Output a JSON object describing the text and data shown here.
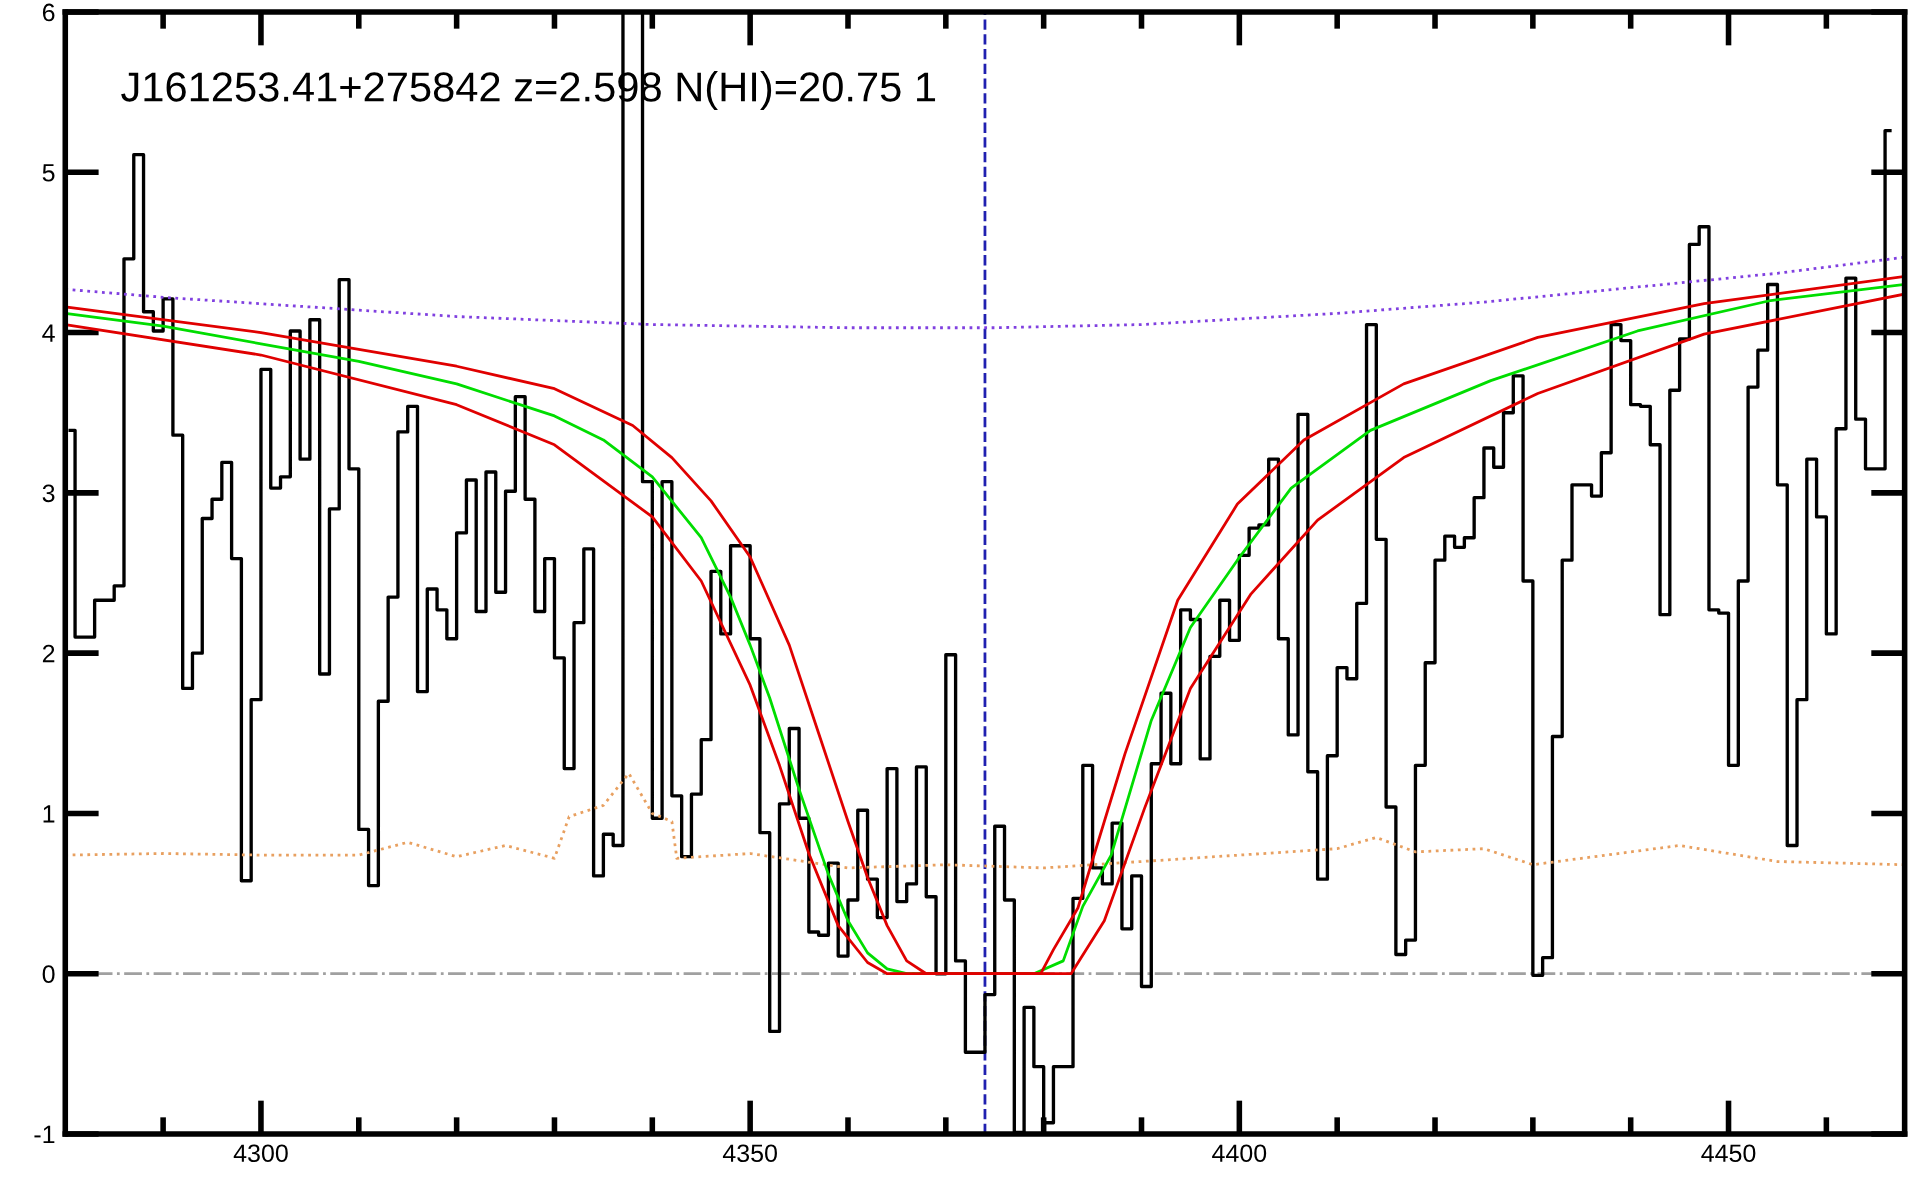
{
  "chart_data": {
    "type": "line",
    "title": "J161253.41+275842 z=2.598 N(HI)=20.75 1",
    "xlim": [
      4280,
      4468
    ],
    "ylim": [
      -1,
      6
    ],
    "xticks": [
      {
        "value": 4290,
        "label": null
      },
      4300,
      {
        "value": 4310,
        "label": null
      },
      {
        "value": 4320,
        "label": null
      },
      {
        "value": 4330,
        "label": null
      },
      {
        "value": 4340,
        "label": null
      },
      4350,
      {
        "value": 4360,
        "label": null
      },
      {
        "value": 4370,
        "label": null
      },
      {
        "value": 4380,
        "label": null
      },
      {
        "value": 4390,
        "label": null
      },
      4400,
      {
        "value": 4410,
        "label": null
      },
      {
        "value": 4420,
        "label": null
      },
      {
        "value": 4430,
        "label": null
      },
      {
        "value": 4440,
        "label": null
      },
      4450,
      {
        "value": 4460,
        "label": null
      }
    ],
    "yticks": [
      -1,
      0,
      1,
      2,
      3,
      4,
      5,
      6
    ],
    "grid": false,
    "legend": false,
    "ref_lines": [
      {
        "axis": "y",
        "value": 0,
        "color": "#a0a0a0",
        "line_style": "dashdot"
      },
      {
        "axis": "x",
        "value": 4374,
        "color": "#2020b0",
        "line_style": "dashed"
      }
    ],
    "series": [
      {
        "type": "step",
        "color": "#000000",
        "line_style": "solid",
        "x": [
          4280.5,
          4281.5,
          4282.5,
          4283.5,
          4284.5,
          4285.5,
          4286.5,
          4287.5,
          4288.5,
          4289.5,
          4290.5,
          4291.5,
          4292.5,
          4293.5,
          4294.5,
          4295.5,
          4296.5,
          4297.5,
          4298.5,
          4299.5,
          4300.5,
          4301.5,
          4302.5,
          4303.5,
          4304.5,
          4305.5,
          4306.5,
          4307.5,
          4308.5,
          4309.5,
          4310.5,
          4311.5,
          4312.5,
          4313.5,
          4314.5,
          4315.5,
          4316.5,
          4317.5,
          4318.5,
          4319.5,
          4320.5,
          4321.5,
          4322.5,
          4323.5,
          4324.5,
          4325.5,
          4326.5,
          4327.5,
          4328.5,
          4329.5,
          4330.5,
          4331.5,
          4332.5,
          4333.5,
          4334.5,
          4335.5,
          4336.5,
          4337.5,
          4338.5,
          4339.5,
          4340.5,
          4341.5,
          4342.5,
          4343.5,
          4344.5,
          4345.5,
          4346.5,
          4347.5,
          4348.5,
          4349.5,
          4350.5,
          4351.5,
          4352.5,
          4353.5,
          4354.5,
          4355.5,
          4356.5,
          4357.5,
          4358.5,
          4359.5,
          4360.5,
          4361.5,
          4362.5,
          4363.5,
          4364.5,
          4365.5,
          4366.5,
          4367.5,
          4368.5,
          4369.5,
          4370.5,
          4371.5,
          4372.5,
          4373.5,
          4374.5,
          4375.5,
          4376.5,
          4377.5,
          4378.5,
          4379.5,
          4380.5,
          4381.5,
          4382.5,
          4383.5,
          4384.5,
          4385.5,
          4386.5,
          4387.5,
          4388.5,
          4389.5,
          4390.5,
          4391.5,
          4392.5,
          4393.5,
          4394.5,
          4395.5,
          4396.5,
          4397.5,
          4398.5,
          4399.5,
          4400.5,
          4401.5,
          4402.5,
          4403.5,
          4404.5,
          4405.5,
          4406.5,
          4407.5,
          4408.5,
          4409.5,
          4410.5,
          4411.5,
          4412.5,
          4413.5,
          4414.5,
          4415.5,
          4416.5,
          4417.5,
          4418.5,
          4419.5,
          4420.5,
          4421.5,
          4422.5,
          4423.5,
          4424.5,
          4425.5,
          4426.5,
          4427.5,
          4428.5,
          4429.5,
          4430.5,
          4431.5,
          4432.5,
          4433.5,
          4434.5,
          4435.5,
          4436.5,
          4437.5,
          4438.5,
          4439.5,
          4440.5,
          4441.5,
          4442.5,
          4443.5,
          4444.5,
          4445.5,
          4446.5,
          4447.5,
          4448.5,
          4449.5,
          4450.5,
          4451.5,
          4452.5,
          4453.5,
          4454.5,
          4455.5,
          4456.5,
          4457.5,
          4458.5,
          4459.5,
          4460.5,
          4461.5,
          4462.5,
          4463.5,
          4464.5,
          4465.5,
          4466.5
        ],
        "values": [
          3.39,
          2.1,
          2.1,
          2.33,
          2.33,
          2.42,
          4.46,
          5.11,
          4.13,
          4.01,
          4.21,
          3.36,
          1.78,
          2.0,
          2.84,
          2.96,
          3.19,
          2.59,
          0.58,
          1.71,
          3.77,
          3.03,
          3.1,
          4.01,
          3.21,
          4.08,
          1.87,
          2.9,
          4.33,
          3.15,
          0.9,
          0.55,
          1.7,
          2.35,
          3.38,
          3.54,
          1.76,
          2.4,
          2.27,
          2.09,
          2.75,
          3.08,
          2.26,
          3.13,
          2.38,
          3.01,
          3.6,
          2.96,
          2.26,
          2.59,
          1.97,
          1.28,
          2.19,
          2.65,
          0.61,
          0.87,
          0.8,
          6,
          6,
          3.07,
          0.97,
          3.07,
          1.11,
          0.73,
          1.12,
          1.46,
          2.51,
          2.12,
          2.67,
          2.67,
          2.09,
          0.88,
          -0.36,
          1.06,
          1.53,
          0.97,
          0.26,
          0.24,
          0.69,
          0.11,
          0.46,
          1.02,
          0.59,
          0.35,
          1.28,
          0.45,
          0.56,
          1.29,
          0.48,
          0.0,
          1.99,
          0.08,
          -0.49,
          -0.49,
          -0.13,
          0.92,
          0.46,
          -0.99,
          -0.21,
          -0.58,
          -0.93,
          -0.58,
          -0.58,
          0.47,
          1.3,
          0.66,
          0.56,
          0.94,
          0.28,
          0.61,
          -0.08,
          1.31,
          1.75,
          1.31,
          2.27,
          2.21,
          1.34,
          1.98,
          2.33,
          2.08,
          2.61,
          2.78,
          2.8,
          3.21,
          2.09,
          1.49,
          3.49,
          1.26,
          0.59,
          1.36,
          1.91,
          1.84,
          2.31,
          4.05,
          2.71,
          1.04,
          0.12,
          0.21,
          1.3,
          1.94,
          2.58,
          2.73,
          2.66,
          2.72,
          2.97,
          3.28,
          3.16,
          3.5,
          3.73,
          2.45,
          -0.01,
          0.1,
          1.48,
          2.58,
          3.05,
          3.05,
          2.98,
          3.25,
          4.05,
          3.95,
          3.55,
          3.54,
          3.3,
          2.24,
          3.64,
          3.96,
          4.55,
          4.66,
          2.27,
          2.25,
          1.3,
          2.45,
          3.66,
          3.89,
          4.3,
          3.05,
          0.8,
          1.71,
          3.21,
          2.85,
          2.12,
          3.4,
          4.34,
          3.46,
          3.15,
          3.15,
          5.26
        ]
      },
      {
        "color": "#8040e0",
        "line_style": "dotted",
        "x": [
          4280,
          4290,
          4300,
          4320,
          4340,
          4360,
          4375,
          4390,
          4410,
          4425,
          4440,
          4455,
          4468
        ],
        "values": [
          4.27,
          4.22,
          4.18,
          4.1,
          4.05,
          4.03,
          4.03,
          4.05,
          4.12,
          4.19,
          4.28,
          4.37,
          4.47
        ]
      },
      {
        "color": "#e8a060",
        "line_style": "dotted",
        "x": [
          4280,
          4290,
          4300,
          4310,
          4315,
          4320,
          4325,
          4330,
          4331.5,
          4335,
          4337.6,
          4340,
          4342,
          4342.5,
          4350,
          4360,
          4370,
          4380,
          4390,
          4400,
          4410,
          4414,
          4418,
          4425,
          4430,
          4440,
          4445,
          4455,
          4468
        ],
        "values": [
          0.74,
          0.75,
          0.74,
          0.74,
          0.82,
          0.73,
          0.8,
          0.72,
          0.98,
          1.05,
          1.25,
          1.0,
          0.95,
          0.72,
          0.75,
          0.66,
          0.68,
          0.66,
          0.7,
          0.74,
          0.78,
          0.85,
          0.76,
          0.78,
          0.68,
          0.76,
          0.8,
          0.7,
          0.68
        ]
      },
      {
        "color": "#00dd00",
        "line_style": "solid",
        "x": [
          4280,
          4290,
          4300,
          4310,
          4320,
          4330,
          4335,
          4340,
          4345,
          4348,
          4350,
          4352,
          4355,
          4358,
          4360,
          4362,
          4364,
          4366,
          4379,
          4382,
          4384,
          4386.9,
          4391,
          4395,
          4399.8,
          4405.3,
          4413.4,
          4425.7,
          4440.7,
          4454.3,
          4468
        ],
        "values": [
          4.12,
          4.04,
          3.93,
          3.82,
          3.68,
          3.48,
          3.33,
          3.1,
          2.72,
          2.35,
          2.05,
          1.72,
          1.15,
          0.62,
          0.33,
          0.13,
          0.03,
          0.0,
          0.0,
          0.08,
          0.42,
          0.74,
          1.58,
          2.16,
          2.58,
          3.03,
          3.39,
          3.7,
          4.01,
          4.2,
          4.3
        ]
      },
      {
        "color": "#e00000",
        "line_style": "solid",
        "x": [
          4280,
          4300,
          4320,
          4330,
          4338,
          4342,
          4346,
          4350,
          4354,
          4357,
          4360,
          4362,
          4364,
          4366,
          4368,
          4379.7,
          4381,
          4383.5,
          4388.3,
          4393.7,
          4399.8,
          4406.6,
          4416.8,
          4430.5,
          4447.5,
          4468
        ],
        "values": [
          4.16,
          4.0,
          3.79,
          3.65,
          3.42,
          3.22,
          2.95,
          2.6,
          2.05,
          1.5,
          0.95,
          0.6,
          0.3,
          0.08,
          0.0,
          0.0,
          0.15,
          0.41,
          1.37,
          2.33,
          2.93,
          3.33,
          3.68,
          3.97,
          4.18,
          4.35
        ]
      },
      {
        "color": "#e00000",
        "line_style": "solid",
        "x": [
          4280,
          4300,
          4320,
          4330,
          4340,
          4345,
          4350,
          4353,
          4356,
          4359,
          4362,
          4364,
          4382.8,
          4386.2,
          4390.3,
          4395,
          4401.2,
          4408,
          4416.8,
          4430.5,
          4447.5,
          4468
        ],
        "values": [
          4.05,
          3.86,
          3.55,
          3.3,
          2.85,
          2.45,
          1.8,
          1.3,
          0.75,
          0.3,
          0.07,
          0.0,
          0.0,
          0.33,
          1.03,
          1.78,
          2.37,
          2.83,
          3.22,
          3.62,
          3.99,
          4.24
        ]
      }
    ]
  }
}
